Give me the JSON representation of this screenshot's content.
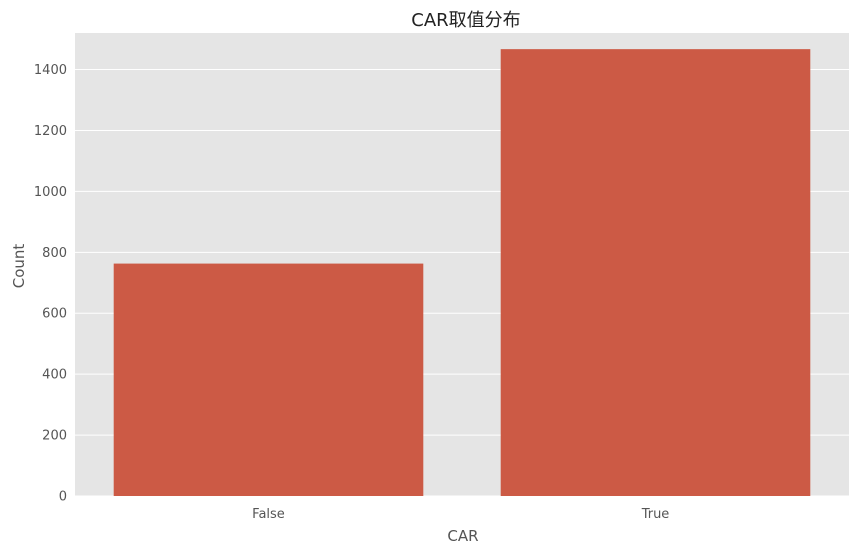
{
  "chart_data": {
    "type": "bar",
    "title": "CAR取值分布",
    "xlabel": "CAR",
    "ylabel": "Count",
    "categories": [
      "False",
      "True"
    ],
    "values": [
      763,
      1467
    ],
    "ylim": [
      0,
      1520
    ],
    "yticks": [
      0,
      200,
      400,
      600,
      800,
      1000,
      1200,
      1400
    ],
    "grid": true,
    "colors": {
      "bar": "#cc5a45",
      "background": "#e5e5e5",
      "grid": "#ffffff"
    }
  }
}
